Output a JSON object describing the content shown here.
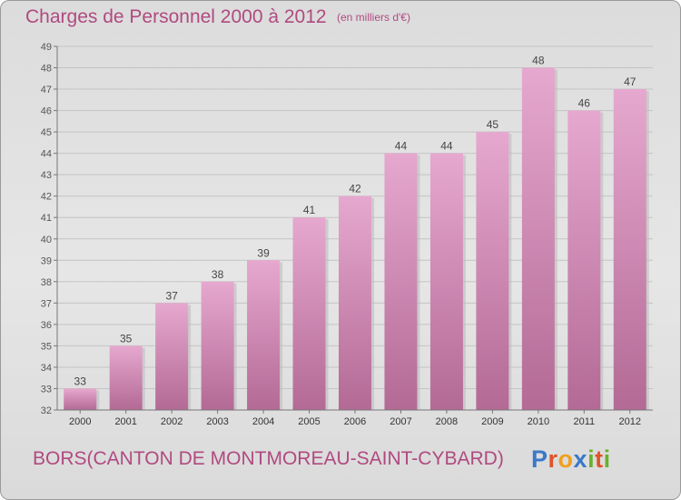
{
  "header": {
    "title": "Charges de Personnel 2000 à 2012",
    "unit": "(en milliers d'€)"
  },
  "footer": {
    "subtitle": "BORS(CANTON DE MONTMOREAU-SAINT-CYBARD)",
    "logo": {
      "text": "Proxiti",
      "letters": [
        {
          "ch": "P",
          "color": "#3a78c8"
        },
        {
          "ch": "r",
          "color": "#e0542a"
        },
        {
          "ch": "o",
          "color": "#f0a020"
        },
        {
          "ch": "x",
          "color": "#3a78c8"
        },
        {
          "ch": "i",
          "color": "#6ab030"
        },
        {
          "ch": "t",
          "color": "#e0542a"
        },
        {
          "ch": "i",
          "color": "#6ab030"
        }
      ]
    }
  },
  "colors": {
    "bar_light": "#e6a8cf",
    "bar_dark": "#b36a95",
    "title": "#b04a80"
  },
  "chart_data": {
    "type": "bar",
    "title": "Charges de Personnel 2000 à 2012",
    "unit": "(en milliers d'€)",
    "categories": [
      "2000",
      "2001",
      "2002",
      "2003",
      "2004",
      "2005",
      "2006",
      "2007",
      "2008",
      "2009",
      "2010",
      "2011",
      "2012"
    ],
    "values": [
      33,
      35,
      37,
      38,
      39,
      41,
      42,
      44,
      44,
      45,
      48,
      46,
      47
    ],
    "ylim": [
      32,
      49
    ],
    "yticks": [
      32,
      33,
      34,
      35,
      36,
      37,
      38,
      39,
      40,
      41,
      42,
      43,
      44,
      45,
      46,
      47,
      48,
      49
    ],
    "grid": true,
    "data_labels": true
  }
}
